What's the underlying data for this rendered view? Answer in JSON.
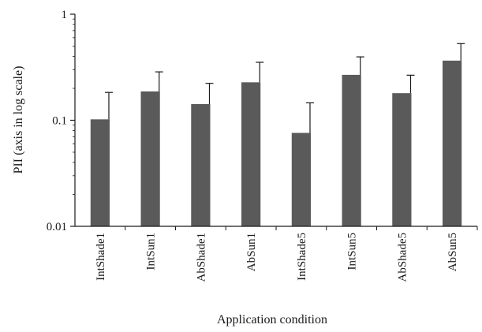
{
  "chart_data": {
    "type": "bar",
    "categories": [
      "IntShade1",
      "IntSun1",
      "AbShade1",
      "AbSun1",
      "IntShade5",
      "IntSun5",
      "AbShade5",
      "AbSun5"
    ],
    "values": [
      0.102,
      0.187,
      0.142,
      0.228,
      0.076,
      0.268,
      0.18,
      0.365
    ],
    "error_upper": [
      0.183,
      0.286,
      0.223,
      0.352,
      0.146,
      0.396,
      0.266,
      0.528
    ],
    "xlabel": "Application condition",
    "ylabel": "PII (axis in log scale)",
    "yscale": "log",
    "ylim": [
      0.01,
      1
    ],
    "yticks": [
      "0.01",
      "0.1",
      "1"
    ],
    "grid": false,
    "bar_color": "#5a5a5a",
    "axis_color": "#1a1a1a"
  }
}
